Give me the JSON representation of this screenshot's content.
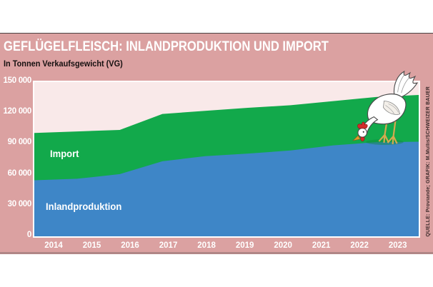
{
  "header": {
    "title": "GEFLÜGELFLEISCH: INLANDPRODUKTION UND IMPORT",
    "subtitle": "In Tonnen Verkaufsgewicht (VG)",
    "credit": "QUELLE: Proviande; GRAFIK: M.Mullis/SCHWEIZER BAUER"
  },
  "colors": {
    "panel_bg": "#dba1a1",
    "plot_bg": "#f9e9e9",
    "import_green": "#12a94b",
    "inland_blue": "#3e86c7",
    "frame_white": "#ffffff",
    "title_text": "#ffffff",
    "subtitle_text": "#161010",
    "axis_text": "#ffffff",
    "credit_text": "#3c2a2a"
  },
  "chart_data": {
    "type": "area",
    "stacked": true,
    "title": "GEFLÜGELFLEISCH: INLANDPRODUKTION UND IMPORT",
    "ylabel": "In Tonnen Verkaufsgewicht (VG)",
    "categories": [
      "2014",
      "2015",
      "2016",
      "2017",
      "2018",
      "2019",
      "2020",
      "2021",
      "2022",
      "2023"
    ],
    "series": [
      {
        "name": "Inlandproduktion",
        "color": "#3e86c7",
        "values": [
          54500,
          56000,
          60500,
          73000,
          78000,
          80500,
          83500,
          88500,
          91500,
          92000
        ]
      },
      {
        "name": "Import",
        "color": "#12a94b",
        "values": [
          46000,
          46000,
          43000,
          46000,
          44000,
          44500,
          44000,
          43000,
          44000,
          45500
        ]
      }
    ],
    "totals": [
      100500,
      102000,
      103500,
      119000,
      122000,
      125000,
      127500,
      131500,
      135500,
      137500
    ],
    "ylim": [
      0,
      150000
    ],
    "yticks": [
      {
        "label": "0",
        "value": 0
      },
      {
        "label": "30 000",
        "value": 30000
      },
      {
        "label": "60 000",
        "value": 60000
      },
      {
        "label": "90 000",
        "value": 90000
      },
      {
        "label": "120 000",
        "value": 120000
      },
      {
        "label": "150 000",
        "value": 150000
      }
    ],
    "grid": false,
    "legend": "labels inside areas"
  },
  "decorations": {
    "chicken": "white hen pecking at the import area"
  }
}
